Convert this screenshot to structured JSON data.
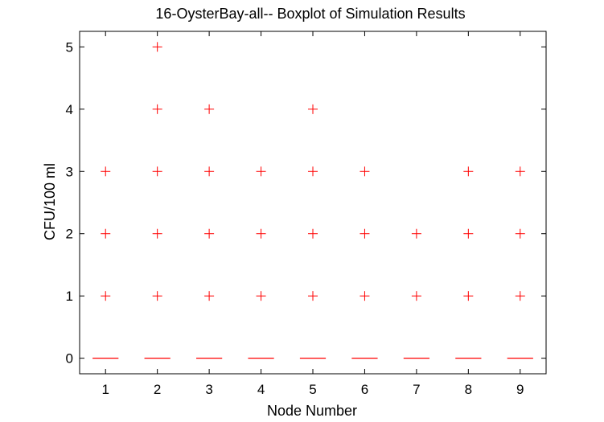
{
  "chart_data": {
    "type": "boxplot",
    "title": "16-OysterBay-all-- Boxplot of Simulation Results",
    "xlabel": "Node Number",
    "ylabel": "CFU/100 ml",
    "categories": [
      "1",
      "2",
      "3",
      "4",
      "5",
      "6",
      "7",
      "8",
      "9"
    ],
    "yticks": [
      0,
      1,
      2,
      3,
      4,
      5
    ],
    "xlim": [
      0.5,
      9.5
    ],
    "ylim": [
      -0.25,
      5.25
    ],
    "grid": false,
    "colors": {
      "marks": "#ff0000",
      "axes": "#000000"
    },
    "outlier_marker": "+",
    "boxes": [
      {
        "node": "1",
        "median": 0,
        "q1": 0,
        "q3": 0,
        "whisker_low": 0,
        "whisker_high": 0,
        "outliers": [
          1,
          2,
          3
        ]
      },
      {
        "node": "2",
        "median": 0,
        "q1": 0,
        "q3": 0,
        "whisker_low": 0,
        "whisker_high": 0,
        "outliers": [
          1,
          2,
          3,
          4,
          5
        ]
      },
      {
        "node": "3",
        "median": 0,
        "q1": 0,
        "q3": 0,
        "whisker_low": 0,
        "whisker_high": 0,
        "outliers": [
          1,
          2,
          3,
          4
        ]
      },
      {
        "node": "4",
        "median": 0,
        "q1": 0,
        "q3": 0,
        "whisker_low": 0,
        "whisker_high": 0,
        "outliers": [
          1,
          2,
          3
        ]
      },
      {
        "node": "5",
        "median": 0,
        "q1": 0,
        "q3": 0,
        "whisker_low": 0,
        "whisker_high": 0,
        "outliers": [
          1,
          2,
          3,
          4
        ]
      },
      {
        "node": "6",
        "median": 0,
        "q1": 0,
        "q3": 0,
        "whisker_low": 0,
        "whisker_high": 0,
        "outliers": [
          1,
          2,
          3
        ]
      },
      {
        "node": "7",
        "median": 0,
        "q1": 0,
        "q3": 0,
        "whisker_low": 0,
        "whisker_high": 0,
        "outliers": [
          1,
          2
        ]
      },
      {
        "node": "8",
        "median": 0,
        "q1": 0,
        "q3": 0,
        "whisker_low": 0,
        "whisker_high": 0,
        "outliers": [
          1,
          2,
          3
        ]
      },
      {
        "node": "9",
        "median": 0,
        "q1": 0,
        "q3": 0,
        "whisker_low": 0,
        "whisker_high": 0,
        "outliers": [
          1,
          2,
          3
        ]
      }
    ]
  }
}
